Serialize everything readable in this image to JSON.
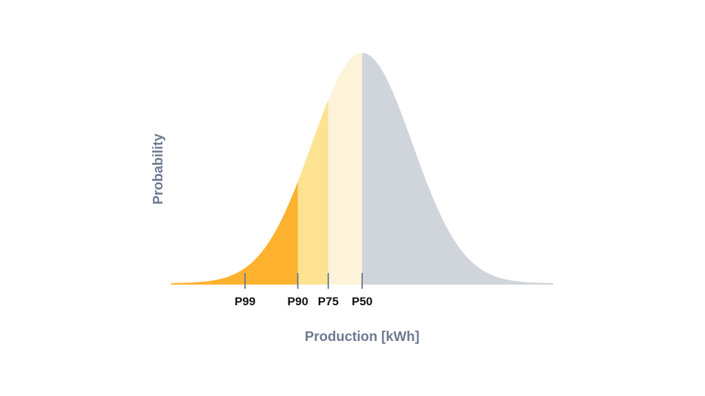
{
  "chart_data": {
    "type": "area",
    "title": "",
    "distribution": "normal",
    "xlabel": "Production [kWh]",
    "ylabel": "Probability",
    "x_range_z": [
      -3.8,
      3.8
    ],
    "mean_z": 0,
    "std_z": 1,
    "grid": false,
    "markers": [
      {
        "label": "P99",
        "z": -2.33
      },
      {
        "label": "P90",
        "z": -1.28
      },
      {
        "label": "P75",
        "z": -0.674
      },
      {
        "label": "P50",
        "z": 0
      }
    ],
    "regions": [
      {
        "name": "below-p90",
        "from_z": -3.8,
        "to_z": -1.28,
        "color": "#fdb22f"
      },
      {
        "name": "p90-p75",
        "from_z": -1.28,
        "to_z": -0.674,
        "color": "#fde291"
      },
      {
        "name": "p75-p50",
        "from_z": -0.674,
        "to_z": 0,
        "color": "#fcf3d9"
      },
      {
        "name": "above-p50",
        "from_z": 0,
        "to_z": 3.8,
        "color": "#d0d5dc"
      }
    ],
    "tick_color": "#6e7891"
  }
}
